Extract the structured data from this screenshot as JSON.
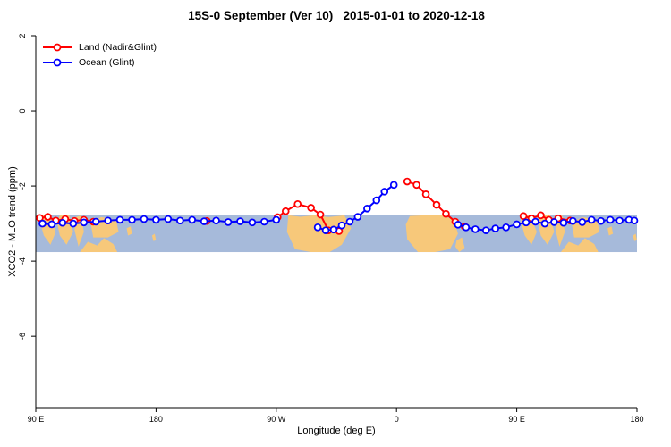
{
  "chart_data": {
    "type": "line",
    "title": "15S-0 September (Ver 10)   2015-01-01 to 2020-12-18",
    "xlabel": "Longitude (deg E)",
    "ylabel": "XCO2 - MLO trend (ppm)",
    "xlim": [
      90,
      540
    ],
    "ylim": [
      -7.9,
      2
    ],
    "grid": false,
    "x_ticks": {
      "values": [
        90,
        180,
        270,
        360,
        450,
        540
      ],
      "labels": [
        "90 E",
        "180",
        "90 W",
        "0",
        "90 E",
        "180"
      ]
    },
    "y_ticks": {
      "values": [
        2,
        0,
        -2,
        -4,
        -6
      ],
      "labels": [
        "2",
        "0",
        "-2",
        "-4",
        "-6"
      ]
    },
    "legend": {
      "position": "top-left",
      "entries": [
        {
          "label": "Land (Nadir&Glint)",
          "color": "#ff0000"
        },
        {
          "label": "Ocean (Glint)",
          "color": "#0000ff"
        }
      ]
    },
    "map_band": {
      "ocean_color": "#a6bada",
      "land_color": "#f7c87a",
      "top": -2.78,
      "bottom": -3.76,
      "land_polygons": [
        {
          "offsets": [
            0,
            360
          ],
          "pts": [
            [
              94,
              0
            ],
            [
              100,
              0
            ],
            [
              105,
              0.45
            ],
            [
              101,
              0.8
            ],
            [
              96,
              0.55
            ],
            [
              93,
              0.15
            ]
          ]
        },
        {
          "offsets": [
            0,
            360
          ],
          "pts": [
            [
              106,
              0.2
            ],
            [
              108,
              0
            ],
            [
              115,
              0
            ],
            [
              118,
              0.45
            ],
            [
              113,
              0.8
            ],
            [
              108,
              0.55
            ]
          ]
        },
        {
          "offsets": [
            0,
            360
          ],
          "pts": [
            [
              119,
              0.4
            ],
            [
              120,
              0.05
            ],
            [
              124,
              0
            ],
            [
              126,
              0.45
            ],
            [
              122,
              0.85
            ]
          ]
        },
        {
          "offsets": [
            0,
            360
          ],
          "pts": [
            [
              131,
              0.2
            ],
            [
              139,
              0.05
            ],
            [
              150,
              0.12
            ],
            [
              152,
              0.45
            ],
            [
              144,
              0.6
            ],
            [
              133,
              0.6
            ]
          ]
        },
        {
          "offsets": [
            0,
            360
          ],
          "pts": [
            [
              123,
              1
            ],
            [
              129,
              0.72
            ],
            [
              136,
              0.82
            ],
            [
              141,
              0.62
            ],
            [
              148,
              0.78
            ],
            [
              151,
              1
            ]
          ]
        },
        {
          "offsets": [
            0,
            360
          ],
          "pts": [
            [
              158,
              0.35
            ],
            [
              161,
              0.3
            ],
            [
              162,
              0.5
            ],
            [
              159,
              0.55
            ]
          ]
        },
        {
          "offsets": [
            0,
            360
          ],
          "pts": [
            [
              177,
              0.55
            ],
            [
              179,
              0.5
            ],
            [
              180,
              0.68
            ],
            [
              178,
              0.7
            ]
          ]
        },
        {
          "offsets": [
            0
          ],
          "pts": [
            [
              279,
              0
            ],
            [
              288,
              0.04
            ],
            [
              298,
              0
            ],
            [
              309,
              0.05
            ],
            [
              321,
              0
            ],
            [
              326,
              0.35
            ],
            [
              319,
              0.8
            ],
            [
              310,
              1
            ],
            [
              296,
              1
            ],
            [
              284,
              0.92
            ],
            [
              278,
              0.45
            ]
          ]
        },
        {
          "offsets": [
            0
          ],
          "pts": [
            [
              367,
              0.25
            ],
            [
              370,
              0.02
            ],
            [
              381,
              0
            ],
            [
              394,
              0
            ],
            [
              403,
              0.12
            ],
            [
              406,
              0.5
            ],
            [
              400,
              0.92
            ],
            [
              389,
              1
            ],
            [
              376,
              1
            ],
            [
              368,
              0.65
            ]
          ]
        },
        {
          "offsets": [
            0
          ],
          "pts": [
            [
              405,
              0.68
            ],
            [
              409,
              0.6
            ],
            [
              411,
              0.88
            ],
            [
              407,
              1
            ],
            [
              404,
              0.85
            ]
          ]
        }
      ]
    },
    "series": [
      {
        "id": "land",
        "name": "Land (Nadir&Glint)",
        "color": "#ff0000",
        "marker": "circle-open",
        "segments": [
          [
            [
              93,
              -2.85
            ],
            [
              99,
              -2.82
            ],
            [
              105,
              -2.92
            ],
            [
              112,
              -2.88
            ],
            [
              119,
              -2.93
            ],
            [
              126,
              -2.9
            ],
            [
              133,
              -2.95
            ]
          ],
          [
            [
              218,
              -2.93
            ]
          ],
          [
            [
              271,
              -2.83
            ],
            [
              277,
              -2.67
            ],
            [
              286,
              -2.48
            ],
            [
              296,
              -2.58
            ],
            [
              303,
              -2.76
            ],
            [
              309,
              -3.18
            ],
            [
              317,
              -3.2
            ]
          ],
          [
            [
              368,
              -1.88
            ],
            [
              375,
              -1.97
            ],
            [
              382,
              -2.22
            ],
            [
              390,
              -2.5
            ],
            [
              397,
              -2.74
            ],
            [
              404,
              -2.95
            ],
            [
              411,
              -3.08
            ]
          ],
          [
            [
              455,
              -2.8
            ],
            [
              461,
              -2.86
            ],
            [
              468,
              -2.78
            ],
            [
              474,
              -2.9
            ],
            [
              481,
              -2.86
            ],
            [
              490,
              -2.92
            ]
          ]
        ]
      },
      {
        "id": "ocean",
        "name": "Ocean (Glint)",
        "color": "#0000ff",
        "marker": "circle-open",
        "segments": [
          [
            [
              95,
              -3.0
            ],
            [
              102,
              -3.02
            ],
            [
              110,
              -2.98
            ],
            [
              118,
              -3.0
            ],
            [
              126,
              -2.97
            ],
            [
              135,
              -2.95
            ],
            [
              144,
              -2.92
            ],
            [
              153,
              -2.9
            ],
            [
              162,
              -2.9
            ],
            [
              171,
              -2.88
            ],
            [
              180,
              -2.9
            ],
            [
              189,
              -2.88
            ],
            [
              198,
              -2.92
            ],
            [
              207,
              -2.9
            ],
            [
              216,
              -2.94
            ],
            [
              225,
              -2.92
            ],
            [
              234,
              -2.96
            ],
            [
              243,
              -2.94
            ],
            [
              252,
              -2.97
            ],
            [
              261,
              -2.95
            ],
            [
              270,
              -2.9
            ]
          ],
          [
            [
              301,
              -3.1
            ],
            [
              307,
              -3.18
            ],
            [
              313,
              -3.16
            ],
            [
              319,
              -3.05
            ],
            [
              325,
              -2.95
            ],
            [
              331,
              -2.82
            ],
            [
              338,
              -2.6
            ],
            [
              345,
              -2.38
            ],
            [
              351,
              -2.15
            ],
            [
              358,
              -1.97
            ]
          ],
          [
            [
              406,
              -3.03
            ],
            [
              412,
              -3.1
            ],
            [
              419,
              -3.15
            ],
            [
              427,
              -3.18
            ],
            [
              434,
              -3.13
            ],
            [
              442,
              -3.1
            ],
            [
              450,
              -3.02
            ],
            [
              457,
              -2.97
            ],
            [
              464,
              -2.95
            ],
            [
              471,
              -3.0
            ],
            [
              478,
              -2.96
            ],
            [
              485,
              -2.98
            ],
            [
              492,
              -2.93
            ],
            [
              499,
              -2.96
            ],
            [
              506,
              -2.9
            ],
            [
              513,
              -2.93
            ],
            [
              520,
              -2.9
            ],
            [
              527,
              -2.92
            ],
            [
              534,
              -2.9
            ],
            [
              538,
              -2.92
            ]
          ]
        ]
      }
    ]
  }
}
